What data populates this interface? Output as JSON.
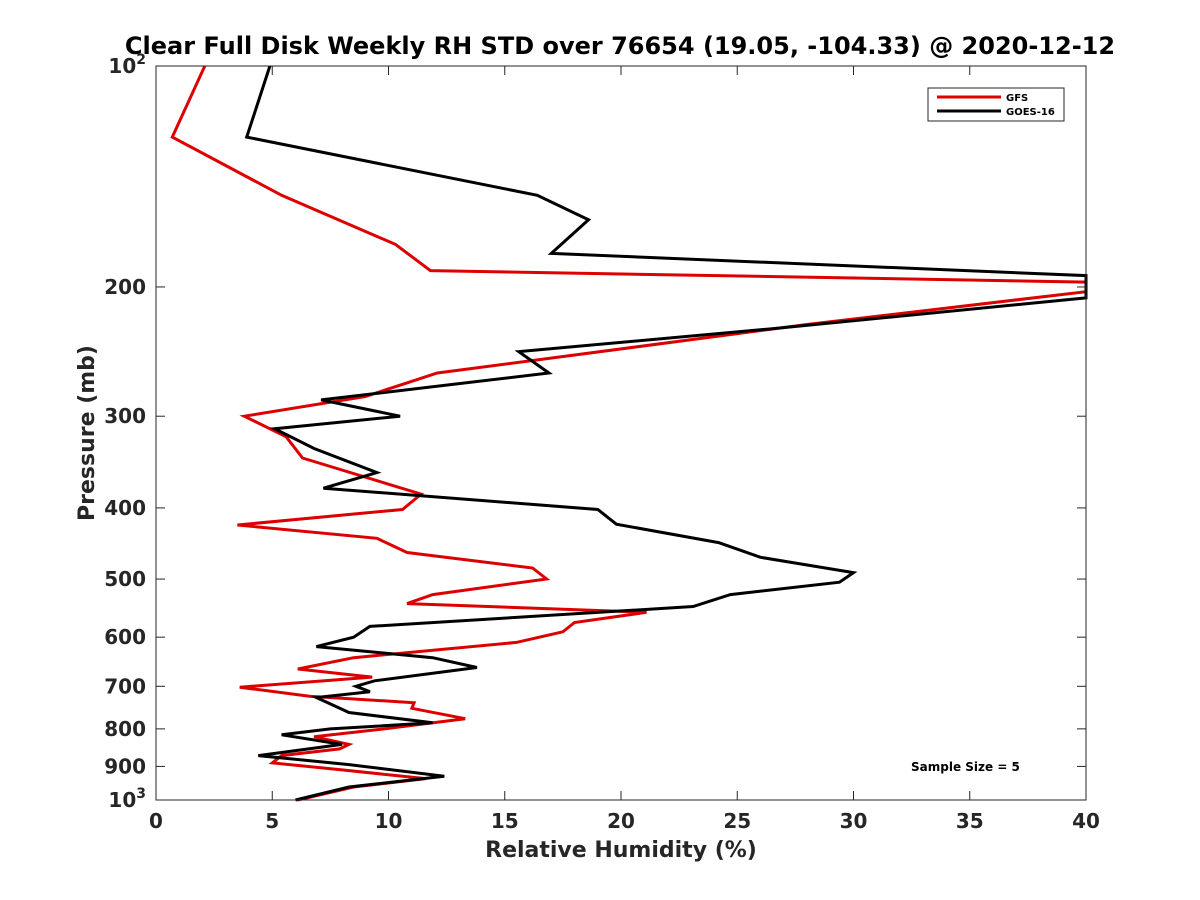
{
  "chart_data": {
    "type": "line",
    "title": "Clear Full Disk Weekly RH STD over 76654 (19.05, -104.33) @ 2020-12-12",
    "xlabel": "Relative Humidity (%)",
    "ylabel": "Pressure (mb)",
    "xlim": [
      0,
      40
    ],
    "ylim": [
      100,
      1000
    ],
    "yscale": "log",
    "y_reversed": true,
    "xticks": [
      "0",
      "5",
      "10",
      "15",
      "20",
      "25",
      "30",
      "35",
      "40"
    ],
    "xtick_values": [
      0,
      5,
      10,
      15,
      20,
      25,
      30,
      35,
      40
    ],
    "yticks": [
      {
        "value": 100,
        "base": "10",
        "exp": "2"
      },
      {
        "value": 200,
        "base": "200",
        "exp": ""
      },
      {
        "value": 300,
        "base": "300",
        "exp": ""
      },
      {
        "value": 400,
        "base": "400",
        "exp": ""
      },
      {
        "value": 500,
        "base": "500",
        "exp": ""
      },
      {
        "value": 600,
        "base": "600",
        "exp": ""
      },
      {
        "value": 700,
        "base": "700",
        "exp": ""
      },
      {
        "value": 800,
        "base": "800",
        "exp": ""
      },
      {
        "value": 900,
        "base": "900",
        "exp": ""
      },
      {
        "value": 1000,
        "base": "10",
        "exp": "3"
      }
    ],
    "legend_position": "top-right",
    "annotation": "Sample Size = 5",
    "series": [
      {
        "name": "GFS",
        "color": "#dd0000",
        "points": [
          [
            2.1,
            100
          ],
          [
            0.7,
            125
          ],
          [
            5.4,
            150
          ],
          [
            10.3,
            175
          ],
          [
            11.8,
            190
          ],
          [
            40,
            197
          ],
          [
            40,
            203
          ],
          [
            28,
            225
          ],
          [
            12.1,
            262
          ],
          [
            9.0,
            282
          ],
          [
            3.8,
            300
          ],
          [
            5.6,
            320
          ],
          [
            6.3,
            342
          ],
          [
            11.4,
            383
          ],
          [
            10.6,
            402
          ],
          [
            3.5,
            422
          ],
          [
            9.5,
            440
          ],
          [
            10.8,
            460
          ],
          [
            16.2,
            483
          ],
          [
            16.8,
            500
          ],
          [
            11.9,
            525
          ],
          [
            10.8,
            540
          ],
          [
            21.1,
            555
          ],
          [
            18.0,
            573
          ],
          [
            17.5,
            590
          ],
          [
            15.5,
            610
          ],
          [
            8.5,
            640
          ],
          [
            6.1,
            663
          ],
          [
            9.3,
            680
          ],
          [
            3.6,
            702
          ],
          [
            6.6,
            722
          ],
          [
            11.1,
            737
          ],
          [
            11.0,
            750
          ],
          [
            13.3,
            775
          ],
          [
            9.8,
            800
          ],
          [
            6.8,
            820
          ],
          [
            8.3,
            840
          ],
          [
            7.9,
            852
          ],
          [
            5.4,
            870
          ],
          [
            5.0,
            890
          ],
          [
            8.0,
            910
          ],
          [
            11.6,
            935
          ],
          [
            8.5,
            960
          ],
          [
            6.1,
            1000
          ]
        ]
      },
      {
        "name": "GOES-16",
        "color": "#000000",
        "points": [
          [
            4.9,
            100
          ],
          [
            3.9,
            125
          ],
          [
            16.4,
            150
          ],
          [
            18.6,
            162
          ],
          [
            17.0,
            180
          ],
          [
            40,
            193
          ],
          [
            40,
            207
          ],
          [
            26.5,
            228
          ],
          [
            15.6,
            245
          ],
          [
            16.9,
            262
          ],
          [
            7.1,
            285
          ],
          [
            10.5,
            300
          ],
          [
            5.1,
            312
          ],
          [
            6.8,
            332
          ],
          [
            9.5,
            358
          ],
          [
            7.2,
            376
          ],
          [
            19.0,
            402
          ],
          [
            19.8,
            421
          ],
          [
            24.2,
            446
          ],
          [
            26.0,
            467
          ],
          [
            30.0,
            490
          ],
          [
            29.4,
            505
          ],
          [
            24.7,
            525
          ],
          [
            23.1,
            545
          ],
          [
            9.2,
            580
          ],
          [
            8.5,
            600
          ],
          [
            6.9,
            618
          ],
          [
            11.9,
            640
          ],
          [
            13.8,
            660
          ],
          [
            9.4,
            688
          ],
          [
            8.6,
            700
          ],
          [
            9.2,
            712
          ],
          [
            6.9,
            725
          ],
          [
            8.3,
            760
          ],
          [
            11.9,
            785
          ],
          [
            7.5,
            800
          ],
          [
            5.4,
            815
          ],
          [
            8.0,
            840
          ],
          [
            4.4,
            870
          ],
          [
            8.3,
            895
          ],
          [
            12.4,
            928
          ],
          [
            8.3,
            960
          ],
          [
            6.0,
            1000
          ]
        ]
      }
    ]
  }
}
